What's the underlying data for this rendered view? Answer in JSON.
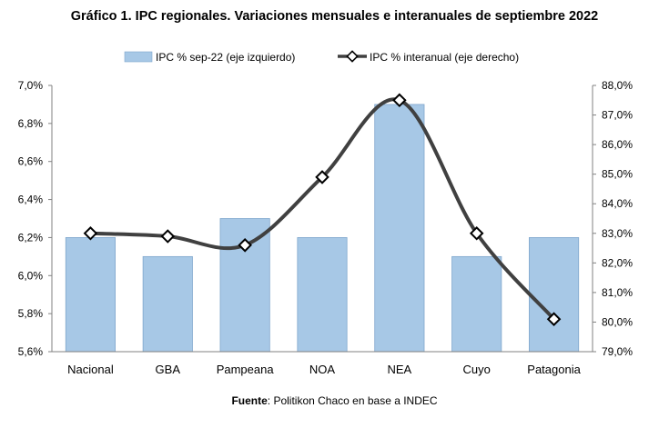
{
  "chart_data": {
    "type": "bar+line",
    "title": "Gráfico 1. IPC regionales. Variaciones mensuales e interanuales de septiembre 2022",
    "categories": [
      "Nacional",
      "GBA",
      "Pampeana",
      "NOA",
      "NEA",
      "Cuyo",
      "Patagonia"
    ],
    "series": [
      {
        "name": "IPC % sep-22 (eje izquierdo)",
        "type": "bar",
        "axis": "left",
        "color": "#a7c8e6",
        "values": [
          6.2,
          6.1,
          6.3,
          6.2,
          6.9,
          6.1,
          6.2
        ]
      },
      {
        "name": "IPC % interanual (eje derecho)",
        "type": "line",
        "axis": "right",
        "color": "#404040",
        "values": [
          83.0,
          82.9,
          82.6,
          84.9,
          87.5,
          83.0,
          80.1
        ]
      }
    ],
    "y_left": {
      "min": 5.6,
      "max": 7.0,
      "ticks": [
        "5,6%",
        "5,8%",
        "6,0%",
        "6,2%",
        "6,4%",
        "6,6%",
        "6,8%",
        "7,0%"
      ]
    },
    "y_right": {
      "min": 79.0,
      "max": 88.0,
      "ticks": [
        "79,0%",
        "80,0%",
        "81,0%",
        "82,0%",
        "83,0%",
        "84,0%",
        "85,0%",
        "86,0%",
        "87,0%",
        "88,0%"
      ]
    },
    "legend_position": "top",
    "grid": false
  },
  "source": {
    "label": "Fuente",
    "text": ": Politikon Chaco en base a INDEC"
  }
}
